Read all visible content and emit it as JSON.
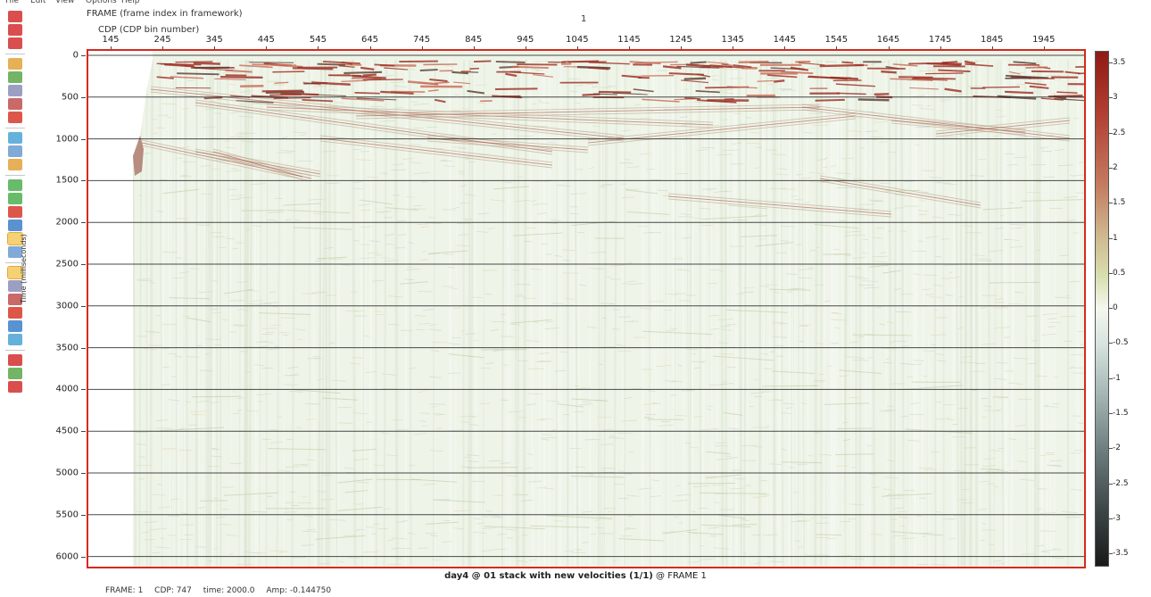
{
  "menu": {
    "items": [
      "File",
      "Edit",
      "View",
      "Options",
      "Help"
    ]
  },
  "toolbar": {
    "icons": [
      "close-icon",
      "stop-icon",
      "cancel-icon",
      "separator",
      "open-icon",
      "save-icon",
      "print-icon",
      "zoom-in-icon",
      "zoom-out-icon",
      "separator",
      "copy-icon",
      "paste-icon",
      "undo-icon",
      "separator",
      "previous-icon",
      "next-icon",
      "reload-icon",
      "play-icon",
      "select-icon",
      "layout-icon",
      "separator",
      "frame-icon",
      "rotate-icon",
      "axis-icon",
      "text-icon",
      "arrow-icon",
      "pick-icon",
      "separator",
      "record-icon",
      "grid-icon",
      "pin-icon"
    ]
  },
  "header": {
    "frame_axis_label": "FRAME (frame index in framework)",
    "frame_value": "1",
    "cdp_axis_label": "CDP (CDP bin number)"
  },
  "x_axis": {
    "ticks": [
      "145",
      "245",
      "345",
      "445",
      "545",
      "645",
      "745",
      "845",
      "945",
      "1045",
      "1145",
      "1245",
      "1345",
      "1445",
      "1545",
      "1645",
      "1745",
      "1845",
      "1945"
    ]
  },
  "y_axis": {
    "label": "Time (milliseconds)",
    "ticks": [
      "0",
      "500",
      "1000",
      "1500",
      "2000",
      "2500",
      "3000",
      "3500",
      "4000",
      "4500",
      "5000",
      "5500",
      "6000"
    ]
  },
  "colorbar": {
    "ticks": [
      "3.5",
      "3",
      "2.5",
      "2",
      "1.5",
      "1",
      "0.5",
      "0",
      "-0.5",
      "-1",
      "-1.5",
      "-2",
      "-2.5",
      "-3",
      "-3.5"
    ],
    "colors": {
      "positive": "#8e1b14",
      "zero": "#f4f7ee",
      "negative": "#1a1a1a"
    }
  },
  "plot": {
    "background": "#eff5ea",
    "frame_color": "#d42a1e",
    "gridline_color": "#222222"
  },
  "footer": {
    "title": "day4 @ 01 stack with new velocities (1/1)",
    "title_suffix": "@  FRAME  1"
  },
  "status": {
    "frame": "FRAME: 1",
    "cdp": "CDP: 747",
    "time": "time: 2000.0",
    "amp": "Amp: -0.144750"
  }
}
